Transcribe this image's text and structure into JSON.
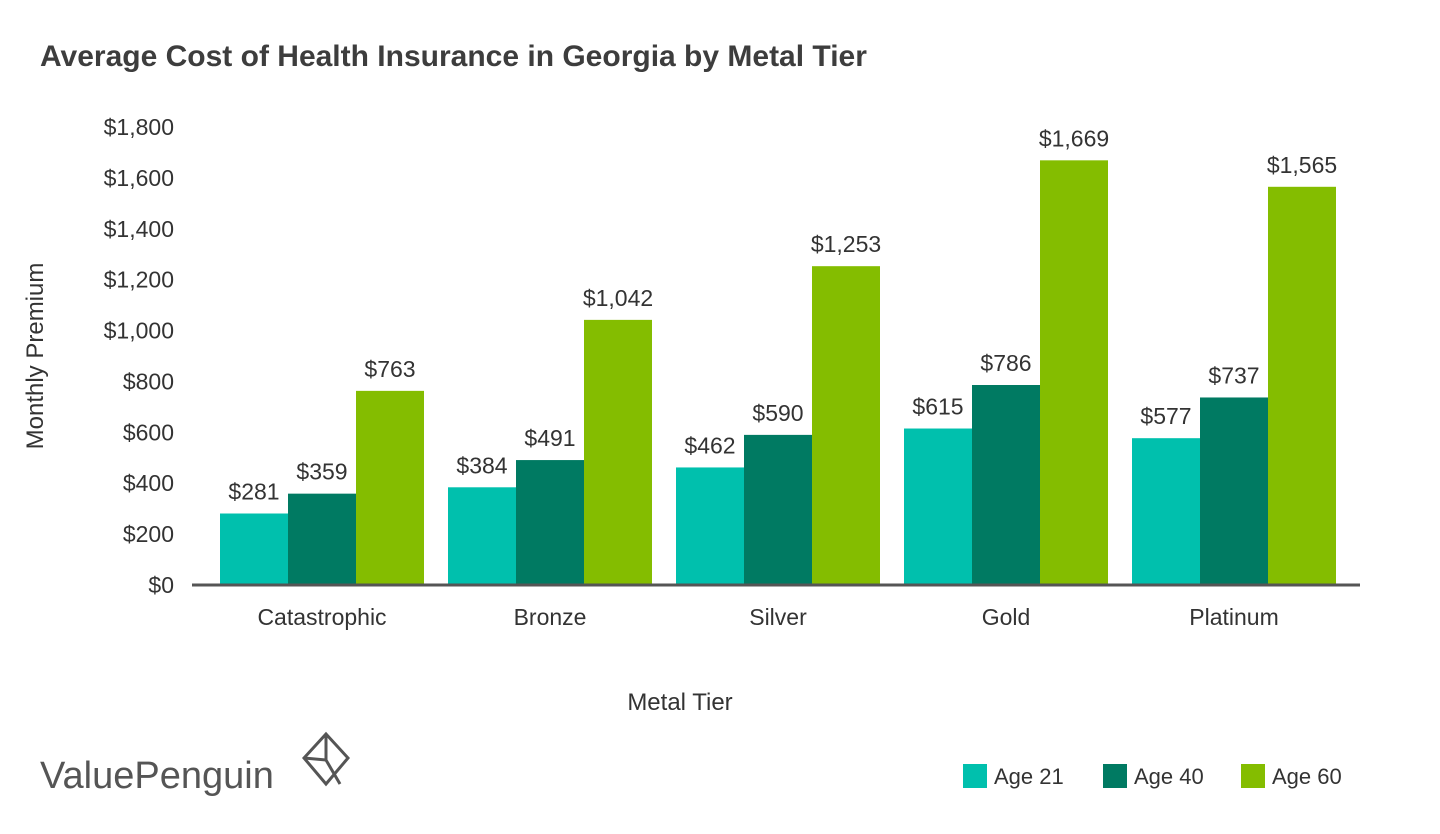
{
  "chart_data": {
    "type": "bar",
    "title": "Average Cost of Health Insurance in Georgia by Metal Tier",
    "xlabel": "Metal Tier",
    "ylabel": "Monthly Premium",
    "categories": [
      "Catastrophic",
      "Bronze",
      "Silver",
      "Gold",
      "Platinum"
    ],
    "series": [
      {
        "name": "Age 21",
        "color": "#00c0ad",
        "values": [
          281,
          384,
          462,
          615,
          577
        ],
        "labels": [
          "$281",
          "$384",
          "$462",
          "$615",
          "$577"
        ]
      },
      {
        "name": "Age 40",
        "color": "#007a62",
        "values": [
          359,
          491,
          590,
          786,
          737
        ],
        "labels": [
          "$359",
          "$491",
          "$590",
          "$786",
          "$737"
        ]
      },
      {
        "name": "Age 60",
        "color": "#84bd00",
        "values": [
          763,
          1042,
          1253,
          1669,
          1565
        ],
        "labels": [
          "$763",
          "$1,042",
          "$1,253",
          "$1,669",
          "$1,565"
        ]
      }
    ],
    "ylim": [
      0,
      1800
    ],
    "yticks": [
      0,
      200,
      400,
      600,
      800,
      1000,
      1200,
      1400,
      1600,
      1800
    ],
    "ytick_labels": [
      "$0",
      "$200",
      "$400",
      "$600",
      "$800",
      "$1,000",
      "$1,200",
      "$1,400",
      "$1,600",
      "$1,800"
    ],
    "grid": false,
    "legend_position": "bottom-right"
  },
  "brand": {
    "name": "ValuePenguin",
    "icon": "valuepenguin-logo-icon"
  }
}
